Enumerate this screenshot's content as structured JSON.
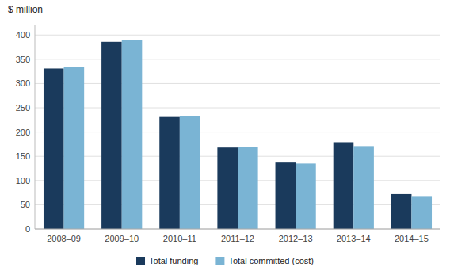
{
  "chart_data": {
    "type": "bar",
    "ylabel": "$ million",
    "categories": [
      "2008–09",
      "2009–10",
      "2010–11",
      "2011–12",
      "2012–13",
      "2013–14",
      "2014–15"
    ],
    "series": [
      {
        "name": "Total funding",
        "color": "#1a3a5c",
        "values": [
          331,
          386,
          231,
          168,
          137,
          179,
          72
        ]
      },
      {
        "name": "Total committed (cost)",
        "color": "#7ab4d4",
        "values": [
          335,
          390,
          233,
          169,
          135,
          171,
          68
        ]
      }
    ],
    "ylim": [
      0,
      420
    ],
    "yticks": [
      0,
      50,
      100,
      150,
      200,
      250,
      300,
      350,
      400
    ],
    "grid": true,
    "legend": "bottom"
  }
}
